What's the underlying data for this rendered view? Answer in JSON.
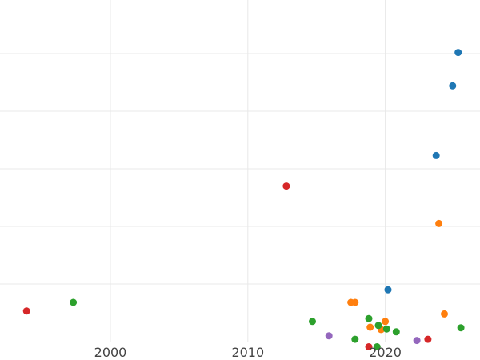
{
  "chart_data": {
    "type": "scatter",
    "title": "",
    "xlabel": "",
    "ylabel": "",
    "x_ticks": [
      2000,
      2010,
      2020
    ],
    "xlim": [
      1992,
      2027
    ],
    "ylim": [
      0,
      6
    ],
    "y_grid_values": [
      1,
      2,
      3,
      4,
      5
    ],
    "grid": true,
    "series": [
      {
        "color": "#1f77b4",
        "points": [
          [
            2025.3,
            5.02
          ],
          [
            2024.9,
            4.44
          ],
          [
            2023.7,
            3.23
          ],
          [
            2020.2,
            0.9
          ]
        ]
      },
      {
        "color": "#ff7f0e",
        "points": [
          [
            2017.5,
            0.68
          ],
          [
            2017.8,
            0.68
          ],
          [
            2023.9,
            2.05
          ],
          [
            2024.3,
            0.48
          ],
          [
            2018.9,
            0.25
          ],
          [
            2019.7,
            0.21
          ],
          [
            2020.0,
            0.35
          ]
        ]
      },
      {
        "color": "#2ca02c",
        "points": [
          [
            1997.3,
            0.68
          ],
          [
            2014.7,
            0.35
          ],
          [
            2017.8,
            0.04
          ],
          [
            2018.8,
            0.4
          ],
          [
            2019.5,
            0.28
          ],
          [
            2020.1,
            0.22
          ],
          [
            2020.8,
            0.17
          ],
          [
            2019.4,
            -0.09
          ],
          [
            2025.5,
            0.24
          ]
        ]
      },
      {
        "color": "#d62728",
        "points": [
          [
            1993.9,
            0.53
          ],
          [
            2012.8,
            2.7
          ],
          [
            2018.8,
            -0.09
          ],
          [
            2023.1,
            0.04
          ]
        ]
      },
      {
        "color": "#9467bd",
        "points": [
          [
            2015.9,
            0.1
          ],
          [
            2022.3,
            0.02
          ]
        ]
      }
    ]
  }
}
